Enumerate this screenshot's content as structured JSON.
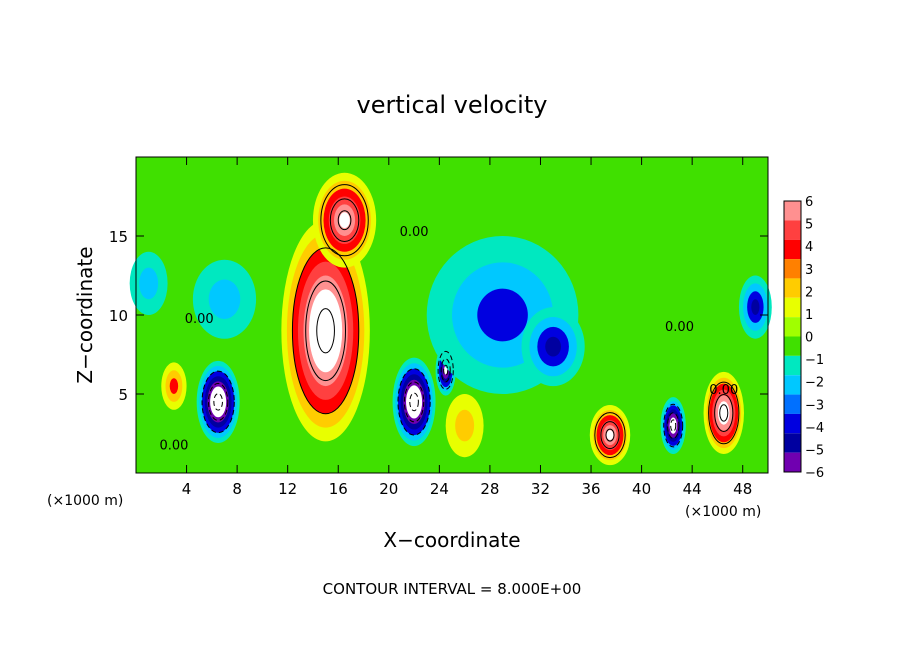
{
  "chart_data": {
    "type": "heatmap",
    "title": "vertical velocity",
    "xlabel": "X−coordinate",
    "ylabel": "Z−coordinate",
    "x_unit_label": "(×1000 m)",
    "x_unit_label_right": "(×1000 m)",
    "xlim": [
      0,
      50
    ],
    "ylim": [
      0,
      20
    ],
    "x_ticks": [
      4,
      8,
      12,
      16,
      20,
      24,
      28,
      32,
      36,
      40,
      44,
      48
    ],
    "y_ticks": [
      5,
      10,
      15
    ],
    "contour_note": "CONTOUR INTERVAL = 8.000E+00",
    "contour_label": "0.00",
    "colorbar": {
      "min": -6,
      "max": 6,
      "ticks": [
        "6",
        "5",
        "4",
        "3",
        "2",
        "1",
        "0",
        "−1",
        "−2",
        "−3",
        "−4",
        "−5",
        "−6"
      ],
      "colors": [
        "#ff9090",
        "#ff4040",
        "#ff0000",
        "#ff8000",
        "#ffcc00",
        "#e8ff00",
        "#a0ff00",
        "#40e000",
        "#00e8c0",
        "#00c8ff",
        "#0070ff",
        "#0000e0",
        "#0000a0",
        "#7000b0"
      ]
    },
    "features": [
      {
        "x": 15,
        "z": 9,
        "rx": 3.5,
        "rz": 7,
        "value": 8,
        "sign": "updraft"
      },
      {
        "x": 16.5,
        "z": 16,
        "rx": 2.5,
        "rz": 3,
        "value": 6,
        "sign": "updraft"
      },
      {
        "x": 6.5,
        "z": 4.5,
        "rx": 1.7,
        "rz": 2.6,
        "value": -8,
        "sign": "downdraft"
      },
      {
        "x": 22,
        "z": 4.5,
        "rx": 1.7,
        "rz": 2.8,
        "value": -8,
        "sign": "downdraft"
      },
      {
        "x": 24.5,
        "z": 6.5,
        "rx": 0.8,
        "rz": 1.6,
        "value": -6,
        "sign": "downdraft"
      },
      {
        "x": 37.5,
        "z": 2.4,
        "rx": 1.6,
        "rz": 1.9,
        "value": 6,
        "sign": "updraft"
      },
      {
        "x": 42.5,
        "z": 3.0,
        "rx": 1.0,
        "rz": 1.8,
        "value": -7,
        "sign": "downdraft"
      },
      {
        "x": 46.5,
        "z": 3.8,
        "rx": 1.6,
        "rz": 2.6,
        "value": 7,
        "sign": "updraft"
      },
      {
        "x": 29,
        "z": 10,
        "rx": 6,
        "rz": 5,
        "value": -3,
        "sign": "downdraft"
      },
      {
        "x": 33,
        "z": 8,
        "rx": 2.5,
        "rz": 2.5,
        "value": -4,
        "sign": "downdraft"
      },
      {
        "x": 49,
        "z": 10.5,
        "rx": 1.3,
        "rz": 2.0,
        "value": -4,
        "sign": "downdraft"
      },
      {
        "x": 7,
        "z": 11,
        "rx": 2.5,
        "rz": 2.5,
        "value": -2,
        "sign": "downdraft"
      },
      {
        "x": 3,
        "z": 5.5,
        "rx": 1.0,
        "rz": 1.5,
        "value": 3,
        "sign": "updraft"
      },
      {
        "x": 26,
        "z": 3,
        "rx": 1.5,
        "rz": 2,
        "value": 2,
        "sign": "updraft"
      },
      {
        "x": 1,
        "z": 12,
        "rx": 1.5,
        "rz": 2,
        "value": -2,
        "sign": "downdraft"
      }
    ]
  }
}
